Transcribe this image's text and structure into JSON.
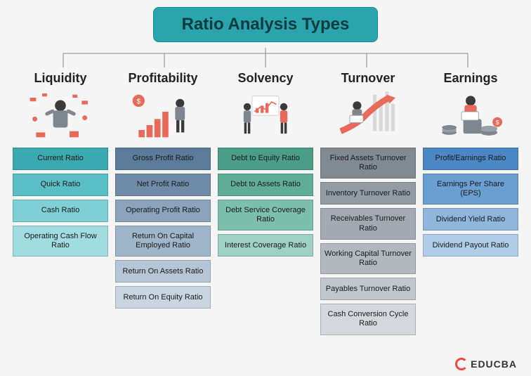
{
  "type": "tree",
  "title": "Ratio Analysis Types",
  "title_bg": "#2aa5ae",
  "title_text": "#0d3b40",
  "accent_red": "#e96a5a",
  "accent_grey": "#7e8790",
  "background": "#f5f5f5",
  "logo_text": "EDUCBA",
  "columns": [
    {
      "header": "Liquidity",
      "illus": "liquidity",
      "item_colors": [
        "#3aa9b0",
        "#5bbec4",
        "#7ed0d4",
        "#a1dde0"
      ],
      "items": [
        "Current Ratio",
        "Quick Ratio",
        "Cash Ratio",
        "Operating Cash Flow Ratio"
      ]
    },
    {
      "header": "Profitability",
      "illus": "profitability",
      "item_colors": [
        "#5c7a99",
        "#6f8ba8",
        "#8ba3bb",
        "#9fb5c9",
        "#b5c6d6",
        "#c9d5e1"
      ],
      "items": [
        "Gross Profit Ratio",
        "Net Profit Ratio",
        "Operating Profit Ratio",
        "Return On Capital Employed Ratio",
        "Return On Assets Ratio",
        "Return On Equity Ratio"
      ]
    },
    {
      "header": "Solvency",
      "illus": "solvency",
      "item_colors": [
        "#4a9d86",
        "#5fad97",
        "#7cbfac",
        "#9fd1c3"
      ],
      "items": [
        "Debt to Equity Ratio",
        "Debt to Assets Ratio",
        "Debt Service Coverage Ratio",
        "Interest Coverage Ratio"
      ]
    },
    {
      "header": "Turnover",
      "illus": "turnover",
      "item_colors": [
        "#808a93",
        "#939ba3",
        "#a2a9b0",
        "#b2b8be",
        "#c2c7cc",
        "#d4d7db"
      ],
      "items": [
        "Fixed Assets Turnover Ratio",
        "Inventory Turnover Ratio",
        "Receivables Turnover Ratio",
        "Working Capital Turnover Ratio",
        "Payables Turnover Ratio",
        "Cash Conversion Cycle Ratio"
      ]
    },
    {
      "header": "Earnings",
      "illus": "earnings",
      "item_colors": [
        "#4a87c4",
        "#6b9ed1",
        "#8fb7dd",
        "#b0cde8"
      ],
      "items": [
        "Profit/Earnings Ratio",
        "Earnings Per Share (EPS)",
        "Dividend Yield Ratio",
        "Dividend Payout Ratio"
      ]
    }
  ]
}
